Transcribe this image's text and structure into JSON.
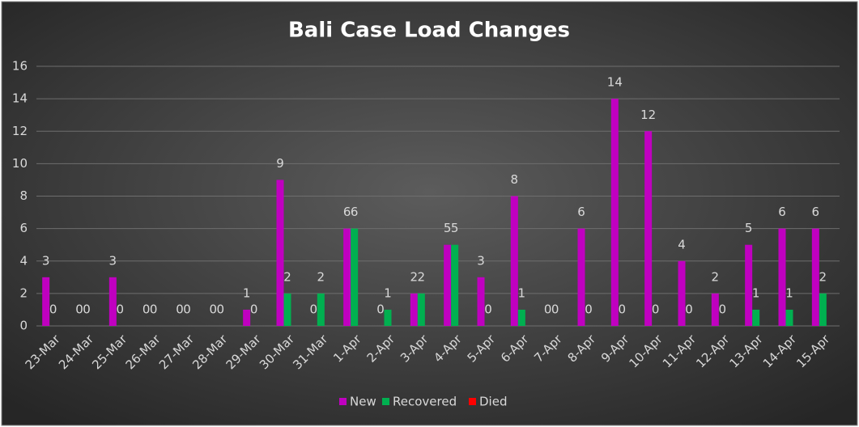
{
  "chart_data": {
    "type": "bar",
    "title": "Bali Case Load Changes",
    "categories": [
      "23-Mar",
      "24-Mar",
      "25-Mar",
      "26-Mar",
      "27-Mar",
      "28-Mar",
      "29-Mar",
      "30-Mar",
      "31-Mar",
      "1-Apr",
      "2-Apr",
      "3-Apr",
      "4-Apr",
      "5-Apr",
      "6-Apr",
      "7-Apr",
      "8-Apr",
      "9-Apr",
      "10-Apr",
      "11-Apr",
      "12-Apr",
      "13-Apr",
      "14-Apr",
      "15-Apr"
    ],
    "series": [
      {
        "name": "New",
        "color": "#c000c0",
        "data_labels": true,
        "values": [
          3,
          0,
          3,
          0,
          0,
          0,
          1,
          9,
          0,
          6,
          0,
          2,
          5,
          3,
          8,
          0,
          6,
          14,
          12,
          4,
          2,
          5,
          6,
          6
        ]
      },
      {
        "name": "Recovered",
        "color": "#00b050",
        "data_labels": true,
        "values": [
          0,
          0,
          0,
          0,
          0,
          0,
          0,
          2,
          2,
          6,
          1,
          2,
          5,
          0,
          1,
          0,
          0,
          0,
          0,
          0,
          0,
          1,
          1,
          2
        ]
      },
      {
        "name": "Died",
        "color": "#ff0000",
        "data_labels": false,
        "values": [
          0,
          0,
          0,
          0,
          0,
          0,
          0,
          0,
          0,
          0,
          0,
          0,
          0,
          0,
          0,
          0,
          0,
          0,
          0,
          0,
          0,
          0,
          0,
          0
        ]
      }
    ],
    "ylim": [
      0,
      16
    ],
    "yticks": [
      0,
      2,
      4,
      6,
      8,
      10,
      12,
      14,
      16
    ],
    "grid": true,
    "legend": "bottom"
  }
}
